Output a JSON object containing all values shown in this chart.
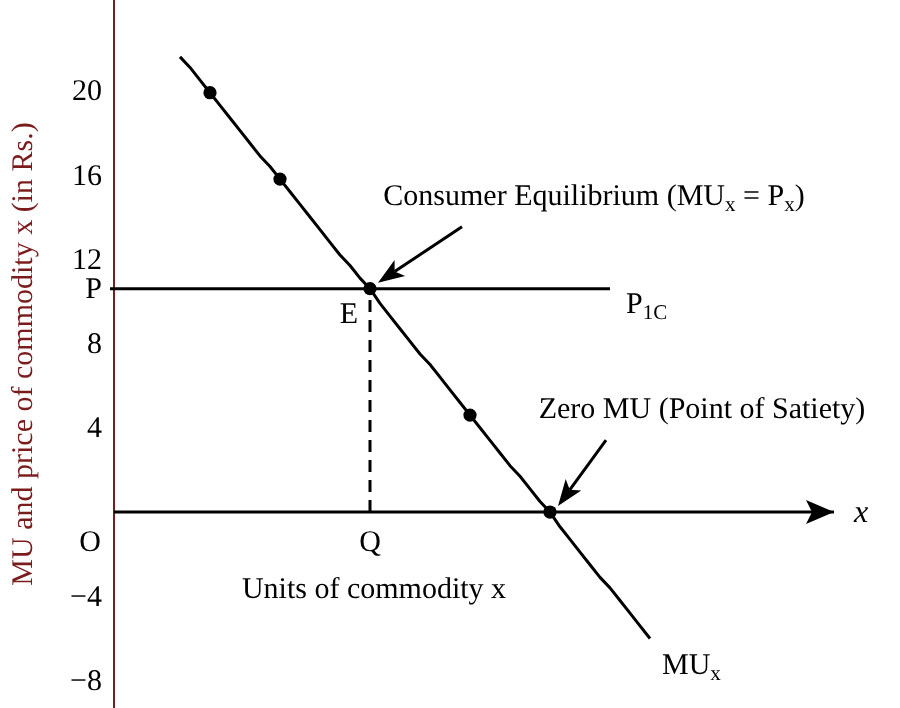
{
  "chart_data": {
    "type": "line",
    "xlabel": "Units of commodity x",
    "ylabel": "MU and price of commodity x (in Rs.)",
    "categories": [
      "O",
      null,
      null,
      null,
      null,
      null,
      null,
      null,
      null,
      null,
      null,
      null,
      null,
      null,
      null,
      null,
      null,
      null,
      null,
      null,
      null,
      null,
      null,
      null,
      null,
      null,
      null,
      null,
      "Q",
      null,
      null,
      null,
      null,
      null,
      null,
      null,
      null,
      null,
      null,
      null,
      null,
      null,
      null,
      null,
      null,
      null,
      null,
      null,
      null,
      null,
      null,
      null,
      null,
      null,
      null,
      null,
      null,
      null,
      null,
      null,
      null,
      null,
      null,
      null,
      null,
      null,
      null,
      null,
      null,
      null,
      null,
      null,
      null,
      null,
      null
    ],
    "ylim": [
      -9.3,
      24.3
    ],
    "yticks": [
      -8,
      -4,
      4,
      8,
      {
        "value": 10.6,
        "label": "P"
      },
      12,
      16,
      20
    ],
    "series": [
      {
        "name": "MU$_{x}$",
        "color": "#000000",
        "marker": "none",
        "line_style": "solid",
        "values": [
          null,
          null,
          null,
          null,
          null,
          null,
          null,
          null,
          null,
          21.6,
          21.1,
          20.5,
          19.9,
          19.3,
          18.7,
          18.1,
          17.5,
          16.9,
          16.4,
          15.8,
          15.2,
          14.6,
          14.0,
          13.4,
          12.8,
          12.2,
          11.7,
          11.1,
          10.6,
          9.9,
          9.3,
          8.7,
          8.1,
          7.5,
          7.0,
          6.4,
          5.8,
          5.2,
          4.6,
          4.0,
          3.4,
          2.8,
          2.2,
          1.7,
          1.1,
          0.5,
          0,
          -0.7,
          -1.3,
          -1.9,
          -2.5,
          -3.1,
          -3.6,
          -4.2,
          -4.8,
          -5.4,
          -6.0,
          null,
          null,
          null,
          null,
          null,
          null,
          null,
          null,
          null,
          null,
          null,
          null,
          null,
          null,
          null,
          null,
          null,
          null
        ]
      },
      {
        "type": "scatter",
        "color": "#000000",
        "marker": "circle",
        "values": [
          null,
          null,
          null,
          null,
          null,
          null,
          null,
          null,
          null,
          null,
          null,
          null,
          19.9,
          null,
          null,
          null,
          null,
          null,
          null,
          15.8,
          null,
          null,
          null,
          null,
          null,
          null,
          null,
          null,
          10.6,
          null,
          null,
          null,
          null,
          null,
          null,
          null,
          null,
          null,
          4.6,
          null,
          null,
          null,
          null,
          null,
          null,
          null,
          0,
          null,
          null,
          null,
          null,
          null,
          null,
          null,
          null,
          null,
          null,
          null,
          null,
          null,
          null,
          null,
          null,
          null,
          null,
          null,
          null,
          null,
          null,
          null,
          null,
          null,
          null,
          null,
          null
        ]
      },
      {
        "name": "P$_{1C}$",
        "color": "#000000",
        "marker": "none",
        "line_style": "solid",
        "values": [
          null,
          null,
          10.6,
          10.6,
          10.6,
          10.6,
          10.6,
          10.6,
          10.6,
          10.6,
          10.6,
          10.6,
          10.6,
          10.6,
          10.6,
          10.6,
          10.6,
          10.6,
          10.6,
          10.6,
          10.6,
          10.6,
          10.6,
          10.6,
          10.6,
          10.6,
          10.6,
          10.6,
          10.6,
          10.6,
          10.6,
          10.6,
          10.6,
          10.6,
          10.6,
          10.6,
          10.6,
          10.6,
          10.6,
          10.6,
          10.6,
          10.6,
          10.6,
          10.6,
          10.6,
          10.6,
          10.6,
          10.6,
          10.6,
          10.6,
          10.6,
          10.6,
          10.6,
          null,
          null,
          null,
          null,
          null,
          null,
          null,
          null,
          null,
          null,
          null,
          null,
          null,
          null,
          null,
          null,
          null,
          null,
          null,
          null,
          null,
          null
        ]
      },
      {
        "color": "#000000",
        "marker": "none",
        "line_style": "dashed",
        "x": [
          "Q",
          "Q"
        ],
        "values": [
          0,
          10.6
        ]
      }
    ],
    "annotations": [
      {
        "text": "E",
        "x": "Q",
        "y": 10.6
      },
      {
        "text": "Consumer Equilibrium (MU$_{x}$ = P$_{x}$)",
        "x": "Q",
        "y": 10.6
      },
      "Zero MU (Point of Satiety)",
      "x"
    ]
  }
}
